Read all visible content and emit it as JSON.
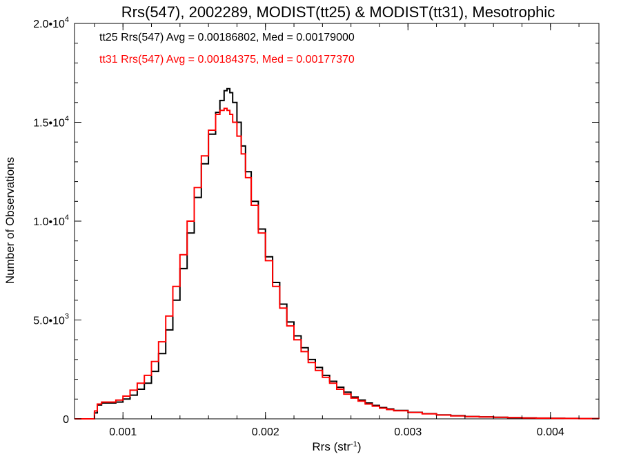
{
  "chart_data": {
    "type": "line",
    "title": "Rrs(547), 2002289, MODIST(tt25) & MODIST(tt31), Mesotrophic",
    "xlabel": "Rrs (str",
    "xlabel_sup": "-1",
    "xlabel_tail": ")",
    "ylabel": "Number of Observations",
    "xlim": [
      0.00066,
      0.00434
    ],
    "ylim": [
      0,
      20000
    ],
    "grid": false,
    "legend_position": "top-left",
    "x_ticks": [
      {
        "value": 0.001,
        "label": "0.001"
      },
      {
        "value": 0.002,
        "label": "0.002"
      },
      {
        "value": 0.003,
        "label": "0.003"
      },
      {
        "value": 0.004,
        "label": "0.004"
      }
    ],
    "y_ticks": [
      {
        "value": 0,
        "label": "0",
        "sup": ""
      },
      {
        "value": 5000,
        "label": "5.0•10",
        "sup": "3"
      },
      {
        "value": 10000,
        "label": "1.0•10",
        "sup": "4"
      },
      {
        "value": 15000,
        "label": "1.5•10",
        "sup": "4"
      },
      {
        "value": 20000,
        "label": "2.0•10",
        "sup": "4"
      }
    ],
    "series": [
      {
        "name": "tt25",
        "legend": "tt25 Rrs(547) Avg = 0.00186802, Med = 0.00179000",
        "color": "#000000",
        "x": [
          0.00066,
          0.00078,
          0.0008,
          0.00082,
          0.00085,
          0.0009,
          0.00095,
          0.001,
          0.00105,
          0.0011,
          0.00115,
          0.0012,
          0.00125,
          0.0013,
          0.00135,
          0.0014,
          0.00145,
          0.0015,
          0.00155,
          0.0016,
          0.00165,
          0.00168,
          0.00171,
          0.00173,
          0.00175,
          0.00177,
          0.0018,
          0.00183,
          0.00186,
          0.0019,
          0.00195,
          0.002,
          0.00205,
          0.0021,
          0.00215,
          0.0022,
          0.00225,
          0.0023,
          0.00235,
          0.0024,
          0.00245,
          0.0025,
          0.00255,
          0.0026,
          0.00265,
          0.0027,
          0.00275,
          0.0028,
          0.00285,
          0.0029,
          0.003,
          0.0031,
          0.0032,
          0.0033,
          0.0034,
          0.0035,
          0.0036,
          0.0037,
          0.0038,
          0.0039,
          0.004,
          0.0041,
          0.0042,
          0.00434
        ],
        "y": [
          0,
          0,
          300,
          700,
          800,
          800,
          850,
          1000,
          1200,
          1500,
          1800,
          2400,
          3300,
          4500,
          6000,
          7600,
          9400,
          11200,
          12900,
          14400,
          15500,
          16100,
          16600,
          16700,
          16500,
          16000,
          15000,
          13800,
          12500,
          11000,
          9600,
          8200,
          6900,
          5800,
          4900,
          4200,
          3600,
          3000,
          2600,
          2200,
          1900,
          1600,
          1350,
          1100,
          950,
          800,
          680,
          570,
          500,
          430,
          330,
          260,
          200,
          160,
          120,
          100,
          80,
          60,
          50,
          40,
          30,
          20,
          15,
          10
        ]
      },
      {
        "name": "tt31",
        "legend": "tt31 Rrs(547) Avg = 0.00184375, Med = 0.00177370",
        "color": "#ff0000",
        "x": [
          0.00066,
          0.00078,
          0.0008,
          0.00082,
          0.00085,
          0.0009,
          0.00095,
          0.001,
          0.00105,
          0.0011,
          0.00115,
          0.0012,
          0.00125,
          0.0013,
          0.00135,
          0.0014,
          0.00145,
          0.0015,
          0.00155,
          0.0016,
          0.00165,
          0.00168,
          0.00171,
          0.00173,
          0.00175,
          0.00177,
          0.0018,
          0.00183,
          0.00186,
          0.0019,
          0.00195,
          0.002,
          0.00205,
          0.0021,
          0.00215,
          0.0022,
          0.00225,
          0.0023,
          0.00235,
          0.0024,
          0.00245,
          0.0025,
          0.00255,
          0.0026,
          0.00265,
          0.0027,
          0.00275,
          0.0028,
          0.00285,
          0.0029,
          0.003,
          0.0031,
          0.0032,
          0.0033,
          0.0034,
          0.0035,
          0.0036,
          0.0037,
          0.0038,
          0.0039,
          0.004,
          0.0041,
          0.0042,
          0.00434
        ],
        "y": [
          0,
          0,
          400,
          750,
          850,
          850,
          950,
          1150,
          1450,
          1800,
          2200,
          2900,
          3900,
          5200,
          6700,
          8300,
          10000,
          11700,
          13300,
          14600,
          15400,
          15600,
          15700,
          15600,
          15400,
          15000,
          14300,
          13400,
          12200,
          10800,
          9400,
          8000,
          6700,
          5600,
          4700,
          4000,
          3400,
          2850,
          2450,
          2100,
          1800,
          1500,
          1250,
          1050,
          900,
          750,
          640,
          540,
          470,
          410,
          320,
          250,
          190,
          150,
          115,
          95,
          75,
          58,
          46,
          36,
          28,
          20,
          14,
          10
        ]
      }
    ]
  }
}
